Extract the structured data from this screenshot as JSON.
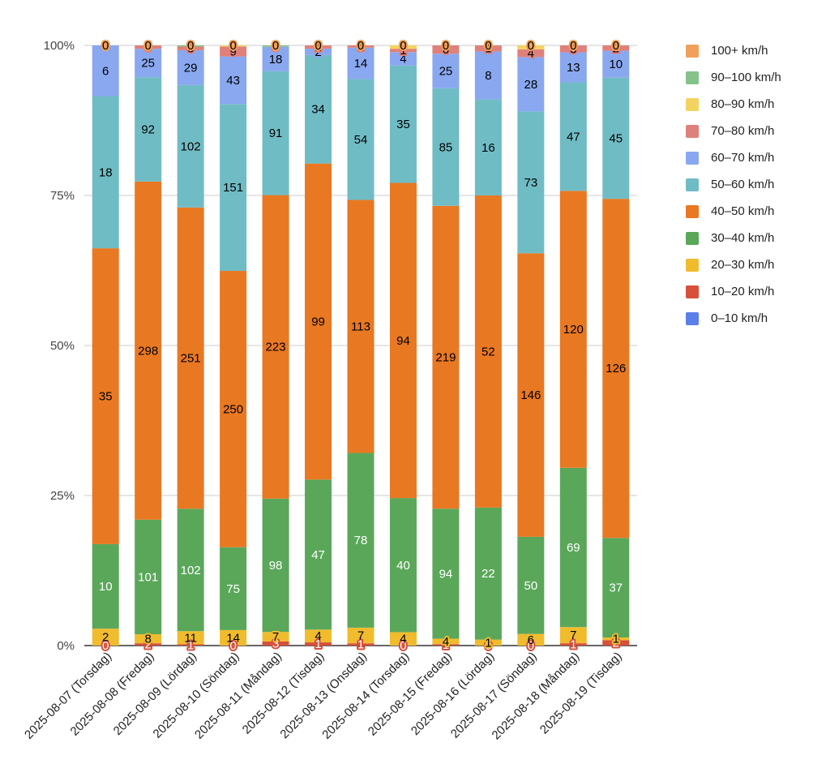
{
  "chart_data": {
    "type": "bar",
    "stacked": "percent",
    "title": "",
    "xlabel": "",
    "ylabel": "",
    "ylim": [
      0,
      100
    ],
    "y_ticks": [
      "0%",
      "25%",
      "50%",
      "75%",
      "100%"
    ],
    "grid": true,
    "legend_position": "right",
    "categories": [
      "2025-08-07 (Torsdag)",
      "2025-08-08 (Fredag)",
      "2025-08-09 (Lördag)",
      "2025-08-10 (Söndag)",
      "2025-08-11 (Måndag)",
      "2025-08-12 (Tisdag)",
      "2025-08-13 (Onsdag)",
      "2025-08-14 (Torsdag)",
      "2025-08-15 (Fredag)",
      "2025-08-16 (Lördag)",
      "2025-08-17 (Söndag)",
      "2025-08-18 (Måndag)",
      "2025-08-19 (Tisdag)"
    ],
    "series": [
      {
        "name": "0–10 km/h",
        "color": "#5b7fe8",
        "label_color": "#ffffff",
        "values": [
          0,
          0,
          0,
          0,
          0,
          0,
          0,
          0,
          0,
          0,
          0,
          0,
          0
        ]
      },
      {
        "name": "10–20 km/h",
        "color": "#d6503a",
        "label_color": "#ffffff",
        "values": [
          0,
          2,
          1,
          0,
          3,
          1,
          1,
          0,
          1,
          0,
          0,
          1,
          2
        ]
      },
      {
        "name": "20–30 km/h",
        "color": "#f0bc2e",
        "label_color": "#000000",
        "values": [
          2,
          8,
          11,
          14,
          7,
          4,
          7,
          4,
          4,
          1,
          6,
          7,
          1
        ]
      },
      {
        "name": "30–40 km/h",
        "color": "#5aa75a",
        "label_color": "#ffffff",
        "values": [
          10,
          101,
          102,
          75,
          98,
          47,
          78,
          40,
          94,
          22,
          50,
          69,
          37
        ]
      },
      {
        "name": "40–50 km/h",
        "color": "#e97822",
        "label_color": "#000000",
        "values": [
          35,
          298,
          251,
          250,
          223,
          99,
          113,
          94,
          219,
          52,
          146,
          120,
          126
        ]
      },
      {
        "name": "50–60 km/h",
        "color": "#70bcc5",
        "label_color": "#000000",
        "values": [
          18,
          92,
          102,
          151,
          91,
          34,
          54,
          35,
          85,
          16,
          73,
          47,
          45
        ]
      },
      {
        "name": "60–70 km/h",
        "color": "#8aa8f0",
        "label_color": "#000000",
        "values": [
          6,
          25,
          29,
          43,
          18,
          2,
          14,
          4,
          25,
          8,
          28,
          13,
          10
        ]
      },
      {
        "name": "70–80 km/h",
        "color": "#e0807a",
        "label_color": "#000000",
        "values": [
          0,
          3,
          3,
          9,
          0,
          1,
          1,
          1,
          6,
          1,
          4,
          3,
          2
        ]
      },
      {
        "name": "80–90 km/h",
        "color": "#f4d460",
        "label_color": "#000000",
        "values": [
          0,
          0,
          0,
          1,
          0,
          0,
          0,
          1,
          0,
          0,
          2,
          0,
          0
        ]
      },
      {
        "name": "90–100 km/h",
        "color": "#85c28a",
        "label_color": "#000000",
        "values": [
          0,
          0,
          1,
          0,
          1,
          0,
          0,
          0,
          0,
          0,
          0,
          0,
          0
        ]
      },
      {
        "name": "100+ km/h",
        "color": "#f0a05a",
        "label_color": "#000000",
        "values": [
          0,
          0,
          0,
          0,
          0,
          0,
          0,
          0,
          0,
          0,
          0,
          0,
          0
        ]
      }
    ]
  }
}
